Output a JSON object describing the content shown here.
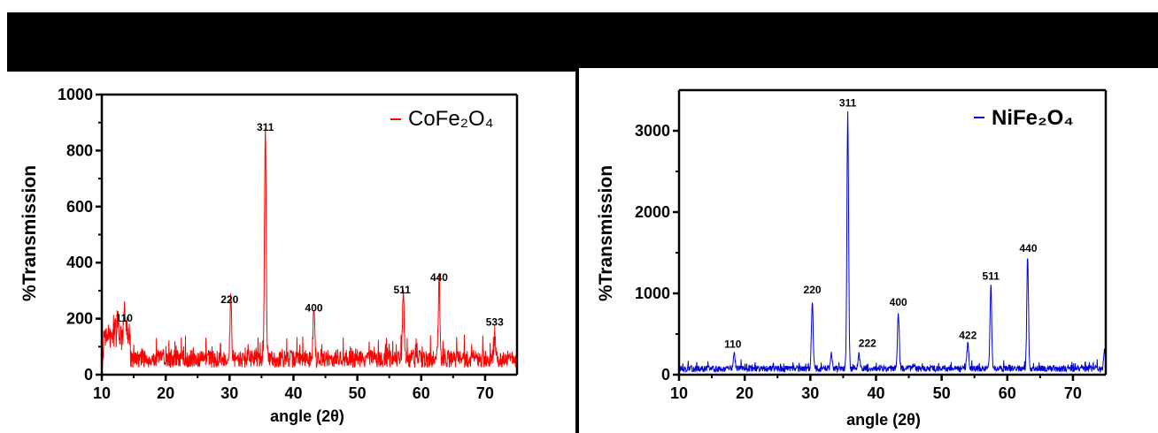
{
  "chart_data": [
    {
      "type": "line",
      "xlabel": "angle (2θ)",
      "ylabel": "%Transmission",
      "xlim": [
        10,
        75
      ],
      "ylim": [
        0,
        1000
      ],
      "xticks": [
        10,
        20,
        30,
        40,
        50,
        60,
        70
      ],
      "yticks": [
        0,
        200,
        400,
        600,
        800,
        1000
      ],
      "legend": {
        "position": "top-right"
      },
      "series": [
        {
          "name": "CoFe₂O₄",
          "color": "#ff0000",
          "baseline": 50,
          "noise": 45,
          "seed": 7,
          "peaks": [
            [
              12.5,
              110
            ],
            [
              13.5,
              130
            ],
            [
              30.2,
              245
            ],
            [
              35.6,
              860
            ],
            [
              43.2,
              215
            ],
            [
              57.2,
              280
            ],
            [
              62.8,
              320
            ],
            [
              71.5,
              110
            ]
          ]
        }
      ],
      "annotations": [
        {
          "text": "110",
          "x": 13.5,
          "y": 190
        },
        {
          "text": "220",
          "x": 30.0,
          "y": 255
        },
        {
          "text": "311",
          "x": 35.6,
          "y": 870
        },
        {
          "text": "400",
          "x": 43.2,
          "y": 225
        },
        {
          "text": "511",
          "x": 57.0,
          "y": 290
        },
        {
          "text": "440",
          "x": 62.8,
          "y": 335
        },
        {
          "text": "533",
          "x": 71.5,
          "y": 175
        }
      ]
    },
    {
      "type": "line",
      "xlabel": "angle (2θ)",
      "ylabel": "%Transmission",
      "xlim": [
        10,
        75
      ],
      "ylim": [
        0,
        3500
      ],
      "xticks": [
        10,
        20,
        30,
        40,
        50,
        60,
        70
      ],
      "yticks": [
        0,
        1000,
        2000,
        3000
      ],
      "legend": {
        "position": "top-right"
      },
      "series": [
        {
          "name": "NiFe₂O₄",
          "color": "#0000dd",
          "baseline": 70,
          "noise": 55,
          "seed": 13,
          "peaks": [
            [
              18.4,
              240
            ],
            [
              30.3,
              880
            ],
            [
              33.2,
              230
            ],
            [
              35.7,
              3200
            ],
            [
              37.4,
              220
            ],
            [
              43.4,
              740
            ],
            [
              54.0,
              350
            ],
            [
              57.5,
              1060
            ],
            [
              63.1,
              1400
            ],
            [
              74.8,
              250
            ]
          ]
        }
      ],
      "annotations": [
        {
          "text": "110",
          "x": 18.2,
          "y": 330
        },
        {
          "text": "220",
          "x": 30.3,
          "y": 1000
        },
        {
          "text": "311",
          "x": 35.7,
          "y": 3300
        },
        {
          "text": "222",
          "x": 38.7,
          "y": 340
        },
        {
          "text": "400",
          "x": 43.4,
          "y": 850
        },
        {
          "text": "422",
          "x": 54.0,
          "y": 440
        },
        {
          "text": "511",
          "x": 57.5,
          "y": 1170
        },
        {
          "text": "440",
          "x": 63.2,
          "y": 1510
        }
      ]
    }
  ]
}
